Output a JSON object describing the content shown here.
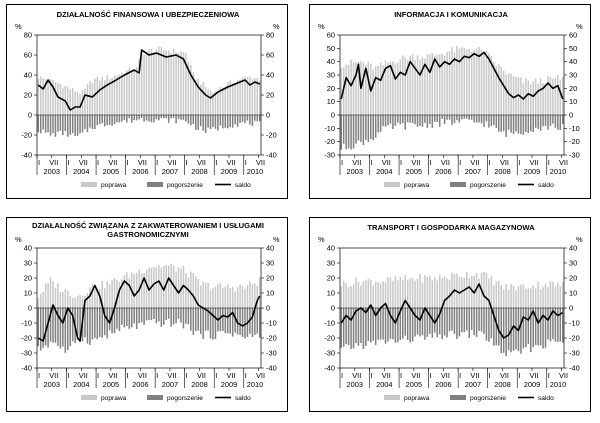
{
  "chart_data": [
    {
      "type": "bar",
      "title_lines": [
        "DZIAŁALNOŚĆ FINANSOWA I UBEZPIECZENIOWA"
      ],
      "unit_left": "%",
      "unit_right": "%",
      "ylim": [
        -40,
        80
      ],
      "yticks": [
        -40,
        -20,
        0,
        20,
        40,
        60,
        80
      ],
      "x_months": [
        "I",
        "VII",
        "I",
        "VII",
        "I",
        "VII",
        "I",
        "VII",
        "I",
        "VII",
        "I",
        "VII",
        "I",
        "VII",
        "I",
        "VII"
      ],
      "x_years": [
        "2003",
        "2004",
        "2005",
        "2006",
        "2007",
        "2008",
        "2009",
        "2010"
      ],
      "legend": {
        "poprawa": "poprawa",
        "pogorszenie": "pogorszenie",
        "saldo": "saldo"
      },
      "colors": {
        "poprawa": "#c8c8c8",
        "pogorszenie": "#808080",
        "saldo": "#000000"
      },
      "n_months": 91,
      "poprawa_knots": [
        [
          0,
          38
        ],
        [
          8,
          32
        ],
        [
          14,
          25
        ],
        [
          18,
          22
        ],
        [
          22,
          35
        ],
        [
          30,
          38
        ],
        [
          36,
          44
        ],
        [
          40,
          46
        ],
        [
          42,
          62
        ],
        [
          48,
          66
        ],
        [
          55,
          64
        ],
        [
          60,
          62
        ],
        [
          63,
          40
        ],
        [
          67,
          30
        ],
        [
          71,
          22
        ],
        [
          76,
          30
        ],
        [
          82,
          36
        ],
        [
          87,
          38
        ],
        [
          90,
          36
        ]
      ],
      "pogorszenie_knots": [
        [
          0,
          -15
        ],
        [
          5,
          -20
        ],
        [
          10,
          -18
        ],
        [
          16,
          -22
        ],
        [
          22,
          -12
        ],
        [
          30,
          -8
        ],
        [
          36,
          -6
        ],
        [
          42,
          -4
        ],
        [
          52,
          -5
        ],
        [
          60,
          -6
        ],
        [
          64,
          -12
        ],
        [
          68,
          -16
        ],
        [
          72,
          -14
        ],
        [
          78,
          -10
        ],
        [
          84,
          -8
        ],
        [
          90,
          -9
        ]
      ],
      "saldo_knots": [
        [
          0,
          30
        ],
        [
          2,
          26
        ],
        [
          4,
          35
        ],
        [
          6,
          28
        ],
        [
          8,
          18
        ],
        [
          11,
          14
        ],
        [
          13,
          5
        ],
        [
          15,
          8
        ],
        [
          17,
          8
        ],
        [
          19,
          20
        ],
        [
          22,
          18
        ],
        [
          25,
          25
        ],
        [
          28,
          30
        ],
        [
          31,
          34
        ],
        [
          35,
          40
        ],
        [
          39,
          45
        ],
        [
          41,
          42
        ],
        [
          42,
          65
        ],
        [
          45,
          60
        ],
        [
          48,
          62
        ],
        [
          52,
          58
        ],
        [
          56,
          60
        ],
        [
          59,
          56
        ],
        [
          62,
          40
        ],
        [
          65,
          28
        ],
        [
          68,
          20
        ],
        [
          70,
          17
        ],
        [
          73,
          23
        ],
        [
          77,
          28
        ],
        [
          81,
          32
        ],
        [
          84,
          35
        ],
        [
          86,
          30
        ],
        [
          88,
          33
        ],
        [
          90,
          31
        ]
      ]
    },
    {
      "type": "bar",
      "title_lines": [
        "INFORMACJA I KOMUNIKACJA"
      ],
      "unit_left": "%",
      "unit_right": "%",
      "ylim": [
        -30,
        60
      ],
      "yticks": [
        -30,
        -20,
        -10,
        0,
        10,
        20,
        30,
        40,
        50,
        60
      ],
      "x_months": [
        "I",
        "VII",
        "I",
        "VII",
        "I",
        "VII",
        "I",
        "VII",
        "I",
        "VII",
        "I",
        "VII",
        "I",
        "VII",
        "I",
        "VII"
      ],
      "x_years": [
        "2003",
        "2004",
        "2005",
        "2006",
        "2007",
        "2008",
        "2009",
        "2010"
      ],
      "legend": {
        "poprawa": "poprawa",
        "pogorszenie": "pogorszenie",
        "saldo": "saldo"
      },
      "colors": {
        "poprawa": "#c8c8c8",
        "pogorszenie": "#808080",
        "saldo": "#000000"
      },
      "n_months": 91,
      "poprawa_knots": [
        [
          0,
          38
        ],
        [
          8,
          40
        ],
        [
          14,
          35
        ],
        [
          20,
          40
        ],
        [
          28,
          44
        ],
        [
          36,
          44
        ],
        [
          44,
          48
        ],
        [
          52,
          50
        ],
        [
          58,
          48
        ],
        [
          62,
          40
        ],
        [
          68,
          30
        ],
        [
          74,
          25
        ],
        [
          80,
          25
        ],
        [
          86,
          27
        ],
        [
          90,
          27
        ]
      ],
      "pogorszenie_knots": [
        [
          0,
          -25
        ],
        [
          6,
          -22
        ],
        [
          12,
          -18
        ],
        [
          18,
          -10
        ],
        [
          24,
          -8
        ],
        [
          32,
          -8
        ],
        [
          40,
          -6
        ],
        [
          50,
          -5
        ],
        [
          58,
          -6
        ],
        [
          62,
          -10
        ],
        [
          66,
          -14
        ],
        [
          72,
          -13
        ],
        [
          78,
          -10
        ],
        [
          84,
          -9
        ],
        [
          90,
          -9
        ]
      ],
      "saldo_knots": [
        [
          0,
          12
        ],
        [
          2,
          28
        ],
        [
          4,
          22
        ],
        [
          6,
          30
        ],
        [
          7,
          38
        ],
        [
          8,
          20
        ],
        [
          10,
          35
        ],
        [
          12,
          18
        ],
        [
          14,
          28
        ],
        [
          16,
          26
        ],
        [
          18,
          35
        ],
        [
          20,
          37
        ],
        [
          22,
          27
        ],
        [
          24,
          32
        ],
        [
          26,
          30
        ],
        [
          28,
          40
        ],
        [
          30,
          35
        ],
        [
          32,
          30
        ],
        [
          34,
          38
        ],
        [
          36,
          32
        ],
        [
          38,
          42
        ],
        [
          40,
          36
        ],
        [
          42,
          40
        ],
        [
          44,
          38
        ],
        [
          46,
          42
        ],
        [
          48,
          40
        ],
        [
          50,
          44
        ],
        [
          52,
          43
        ],
        [
          54,
          46
        ],
        [
          56,
          44
        ],
        [
          58,
          47
        ],
        [
          60,
          42
        ],
        [
          62,
          35
        ],
        [
          64,
          28
        ],
        [
          66,
          22
        ],
        [
          68,
          16
        ],
        [
          70,
          13
        ],
        [
          72,
          15
        ],
        [
          74,
          12
        ],
        [
          76,
          16
        ],
        [
          78,
          14
        ],
        [
          80,
          18
        ],
        [
          82,
          20
        ],
        [
          84,
          24
        ],
        [
          86,
          20
        ],
        [
          88,
          22
        ],
        [
          90,
          12
        ]
      ]
    },
    {
      "type": "bar",
      "title_lines": [
        "DZIAŁALNOŚĆ ZWIĄZANA Z ZAKWATEROWANIEM I USŁUGAMI",
        "GASTRONOMICZNYMI"
      ],
      "unit_left": "%",
      "unit_right": "%",
      "ylim": [
        -40,
        40
      ],
      "yticks": [
        -40,
        -30,
        -20,
        -10,
        0,
        10,
        20,
        30,
        40
      ],
      "x_months": [
        "I",
        "VII",
        "I",
        "VII",
        "I",
        "VII",
        "I",
        "VII",
        "I",
        "VII",
        "I",
        "VII",
        "I",
        "VII",
        "I",
        "VII"
      ],
      "x_years": [
        "2003",
        "2004",
        "2005",
        "2006",
        "2007",
        "2008",
        "2009",
        "2010"
      ],
      "legend": {
        "poprawa": "poprawa",
        "pogorszenie": "pogorszenie",
        "saldo": "saldo"
      },
      "colors": {
        "poprawa": "#c8c8c8",
        "pogorszenie": "#808080",
        "saldo": "#000000"
      },
      "n_months": 91,
      "poprawa_knots": [
        [
          0,
          8
        ],
        [
          5,
          18
        ],
        [
          10,
          12
        ],
        [
          16,
          8
        ],
        [
          22,
          14
        ],
        [
          28,
          16
        ],
        [
          34,
          20
        ],
        [
          40,
          24
        ],
        [
          46,
          28
        ],
        [
          52,
          28
        ],
        [
          58,
          26
        ],
        [
          62,
          22
        ],
        [
          66,
          16
        ],
        [
          72,
          14
        ],
        [
          78,
          14
        ],
        [
          84,
          14
        ],
        [
          90,
          18
        ]
      ],
      "pogorszenie_knots": [
        [
          0,
          -28
        ],
        [
          6,
          -22
        ],
        [
          12,
          -30
        ],
        [
          16,
          -20
        ],
        [
          22,
          -22
        ],
        [
          28,
          -18
        ],
        [
          34,
          -14
        ],
        [
          40,
          -12
        ],
        [
          46,
          -10
        ],
        [
          52,
          -10
        ],
        [
          58,
          -10
        ],
        [
          62,
          -14
        ],
        [
          66,
          -18
        ],
        [
          72,
          -18
        ],
        [
          78,
          -16
        ],
        [
          84,
          -20
        ],
        [
          90,
          -18
        ]
      ],
      "saldo_knots": [
        [
          0,
          -20
        ],
        [
          2,
          -22
        ],
        [
          4,
          -10
        ],
        [
          6,
          2
        ],
        [
          8,
          -5
        ],
        [
          10,
          -10
        ],
        [
          12,
          0
        ],
        [
          14,
          -5
        ],
        [
          16,
          -20
        ],
        [
          17,
          -22
        ],
        [
          19,
          5
        ],
        [
          21,
          8
        ],
        [
          23,
          15
        ],
        [
          25,
          8
        ],
        [
          27,
          -5
        ],
        [
          29,
          -10
        ],
        [
          31,
          0
        ],
        [
          33,
          12
        ],
        [
          35,
          18
        ],
        [
          37,
          15
        ],
        [
          39,
          8
        ],
        [
          41,
          12
        ],
        [
          43,
          20
        ],
        [
          45,
          12
        ],
        [
          47,
          16
        ],
        [
          49,
          18
        ],
        [
          51,
          12
        ],
        [
          53,
          20
        ],
        [
          55,
          15
        ],
        [
          57,
          10
        ],
        [
          59,
          15
        ],
        [
          61,
          12
        ],
        [
          63,
          8
        ],
        [
          65,
          2
        ],
        [
          67,
          0
        ],
        [
          69,
          -2
        ],
        [
          71,
          -5
        ],
        [
          73,
          -8
        ],
        [
          75,
          -5
        ],
        [
          77,
          -6
        ],
        [
          79,
          -3
        ],
        [
          81,
          -10
        ],
        [
          83,
          -12
        ],
        [
          85,
          -10
        ],
        [
          87,
          -6
        ],
        [
          89,
          5
        ],
        [
          90,
          8
        ]
      ]
    },
    {
      "type": "bar",
      "title_lines": [
        "TRANSPORT I GOSPODARKA MAGAZYNOWA"
      ],
      "unit_left": "%",
      "unit_right": "%",
      "ylim": [
        -40,
        40
      ],
      "yticks": [
        -40,
        -30,
        -20,
        -10,
        0,
        10,
        20,
        30,
        40
      ],
      "x_months": [
        "I",
        "VII",
        "I",
        "VII",
        "I",
        "VII",
        "I",
        "VII",
        "I",
        "VII",
        "I",
        "VII",
        "I",
        "VII",
        "I",
        "VII"
      ],
      "x_years": [
        "2003",
        "2004",
        "2005",
        "2006",
        "2007",
        "2008",
        "2009",
        "2010"
      ],
      "legend": {
        "poprawa": "poprawa",
        "pogorszenie": "pogorszenie",
        "saldo": "saldo"
      },
      "colors": {
        "poprawa": "#c8c8c8",
        "pogorszenie": "#808080",
        "saldo": "#000000"
      },
      "n_months": 91,
      "poprawa_knots": [
        [
          0,
          16
        ],
        [
          8,
          18
        ],
        [
          16,
          18
        ],
        [
          24,
          19
        ],
        [
          32,
          20
        ],
        [
          40,
          20
        ],
        [
          48,
          22
        ],
        [
          54,
          23
        ],
        [
          58,
          22
        ],
        [
          62,
          18
        ],
        [
          66,
          14
        ],
        [
          72,
          14
        ],
        [
          78,
          15
        ],
        [
          84,
          16
        ],
        [
          90,
          15
        ]
      ],
      "pogorszenie_knots": [
        [
          0,
          -28
        ],
        [
          6,
          -25
        ],
        [
          12,
          -24
        ],
        [
          18,
          -22
        ],
        [
          24,
          -22
        ],
        [
          30,
          -20
        ],
        [
          36,
          -20
        ],
        [
          42,
          -18
        ],
        [
          48,
          -18
        ],
        [
          54,
          -17
        ],
        [
          58,
          -18
        ],
        [
          62,
          -24
        ],
        [
          66,
          -30
        ],
        [
          70,
          -31
        ],
        [
          74,
          -28
        ],
        [
          80,
          -25
        ],
        [
          86,
          -23
        ],
        [
          90,
          -22
        ]
      ],
      "saldo_knots": [
        [
          0,
          -10
        ],
        [
          2,
          -5
        ],
        [
          4,
          -8
        ],
        [
          6,
          -2
        ],
        [
          8,
          0
        ],
        [
          10,
          -3
        ],
        [
          12,
          2
        ],
        [
          14,
          -5
        ],
        [
          16,
          0
        ],
        [
          18,
          3
        ],
        [
          20,
          -5
        ],
        [
          22,
          -10
        ],
        [
          24,
          -2
        ],
        [
          26,
          5
        ],
        [
          28,
          0
        ],
        [
          30,
          -5
        ],
        [
          32,
          -8
        ],
        [
          34,
          0
        ],
        [
          36,
          -5
        ],
        [
          38,
          -10
        ],
        [
          40,
          -4
        ],
        [
          42,
          5
        ],
        [
          44,
          8
        ],
        [
          46,
          12
        ],
        [
          48,
          10
        ],
        [
          50,
          12
        ],
        [
          52,
          14
        ],
        [
          54,
          10
        ],
        [
          56,
          16
        ],
        [
          58,
          8
        ],
        [
          60,
          5
        ],
        [
          62,
          -5
        ],
        [
          64,
          -15
        ],
        [
          66,
          -20
        ],
        [
          68,
          -18
        ],
        [
          70,
          -12
        ],
        [
          72,
          -15
        ],
        [
          74,
          -6
        ],
        [
          76,
          -8
        ],
        [
          78,
          -2
        ],
        [
          80,
          -10
        ],
        [
          82,
          -5
        ],
        [
          84,
          -8
        ],
        [
          86,
          -2
        ],
        [
          88,
          -5
        ],
        [
          90,
          -3
        ]
      ]
    }
  ]
}
